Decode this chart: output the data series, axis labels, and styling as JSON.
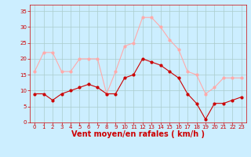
{
  "x": [
    0,
    1,
    2,
    3,
    4,
    5,
    6,
    7,
    8,
    9,
    10,
    11,
    12,
    13,
    14,
    15,
    16,
    17,
    18,
    19,
    20,
    21,
    22,
    23
  ],
  "wind_avg": [
    9,
    9,
    7,
    9,
    10,
    11,
    12,
    11,
    9,
    9,
    14,
    15,
    20,
    19,
    18,
    16,
    14,
    9,
    6,
    1,
    6,
    6,
    7,
    8
  ],
  "wind_gust": [
    16,
    22,
    22,
    16,
    16,
    20,
    20,
    20,
    9,
    16,
    24,
    25,
    33,
    33,
    30,
    26,
    23,
    16,
    15,
    9,
    11,
    14,
    14,
    14
  ],
  "avg_color": "#cc0000",
  "gust_color": "#ffaaaa",
  "bg_color": "#cceeff",
  "grid_color": "#aacccc",
  "axis_color": "#cc0000",
  "xlabel": "Vent moyen/en rafales ( km/h )",
  "ylim": [
    0,
    37
  ],
  "yticks": [
    0,
    5,
    10,
    15,
    20,
    25,
    30,
    35
  ],
  "xticks": [
    0,
    1,
    2,
    3,
    4,
    5,
    6,
    7,
    8,
    9,
    10,
    11,
    12,
    13,
    14,
    15,
    16,
    17,
    18,
    19,
    20,
    21,
    22,
    23
  ],
  "xlabel_fontsize": 7,
  "tick_fontsize": 5,
  "linewidth": 0.8,
  "markersize": 2.0
}
